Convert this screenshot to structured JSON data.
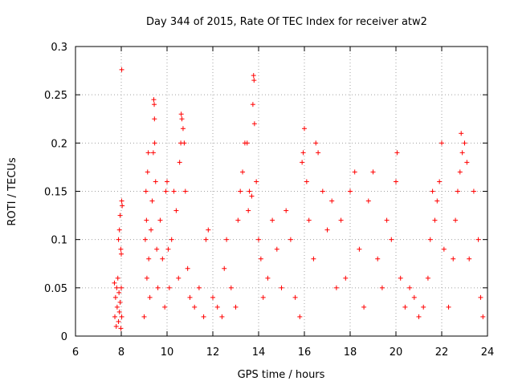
{
  "chart_data": {
    "type": "scatter",
    "title": "Day 344 of 2015, Rate Of TEC Index for receiver atw2",
    "xlabel": "GPS time / hours",
    "ylabel": "ROTI / TECUs",
    "xlim": [
      6,
      24
    ],
    "ylim": [
      0,
      0.3
    ],
    "x_ticks": [
      6,
      8,
      10,
      12,
      14,
      16,
      18,
      20,
      22,
      24
    ],
    "x_tick_labels": [
      "6",
      "8",
      "10",
      "12",
      "14",
      "16",
      "18",
      "20",
      "22",
      "24"
    ],
    "y_ticks": [
      0,
      0.05,
      0.1,
      0.15,
      0.2,
      0.25,
      0.3
    ],
    "y_tick_labels": [
      "0",
      "0.05",
      "0.1",
      "0.15",
      "0.2",
      "0.25",
      "0.3"
    ],
    "grid": true,
    "marker": "plus",
    "color": "#ff0000",
    "series": [
      {
        "name": "ROTI",
        "points": [
          [
            7.7,
            0.055
          ],
          [
            7.72,
            0.02
          ],
          [
            7.75,
            0.04
          ],
          [
            7.78,
            0.01
          ],
          [
            7.8,
            0.05
          ],
          [
            7.82,
            0.03
          ],
          [
            7.85,
            0.06
          ],
          [
            7.88,
            0.015
          ],
          [
            7.9,
            0.045
          ],
          [
            7.92,
            0.025
          ],
          [
            7.95,
            0.035
          ],
          [
            7.98,
            0.008
          ],
          [
            8.0,
            0.05
          ],
          [
            8.02,
            0.02
          ],
          [
            7.88,
            0.1
          ],
          [
            7.92,
            0.11
          ],
          [
            7.95,
            0.125
          ],
          [
            7.98,
            0.09
          ],
          [
            8.0,
            0.085
          ],
          [
            8.02,
            0.14
          ],
          [
            8.04,
            0.135
          ],
          [
            8.02,
            0.276
          ],
          [
            9.0,
            0.02
          ],
          [
            9.05,
            0.1
          ],
          [
            9.08,
            0.15
          ],
          [
            9.1,
            0.12
          ],
          [
            9.12,
            0.06
          ],
          [
            9.15,
            0.17
          ],
          [
            9.18,
            0.19
          ],
          [
            9.2,
            0.08
          ],
          [
            9.25,
            0.04
          ],
          [
            9.3,
            0.11
          ],
          [
            9.35,
            0.14
          ],
          [
            9.4,
            0.19
          ],
          [
            9.42,
            0.245
          ],
          [
            9.44,
            0.24
          ],
          [
            9.45,
            0.225
          ],
          [
            9.46,
            0.2
          ],
          [
            9.5,
            0.16
          ],
          [
            9.55,
            0.09
          ],
          [
            9.6,
            0.05
          ],
          [
            9.7,
            0.12
          ],
          [
            9.8,
            0.08
          ],
          [
            9.9,
            0.03
          ],
          [
            9.95,
            0.15
          ],
          [
            10.0,
            0.16
          ],
          [
            10.05,
            0.09
          ],
          [
            10.1,
            0.05
          ],
          [
            10.2,
            0.1
          ],
          [
            10.3,
            0.15
          ],
          [
            10.4,
            0.13
          ],
          [
            10.5,
            0.06
          ],
          [
            10.55,
            0.18
          ],
          [
            10.6,
            0.2
          ],
          [
            10.62,
            0.23
          ],
          [
            10.65,
            0.225
          ],
          [
            10.7,
            0.215
          ],
          [
            10.75,
            0.2
          ],
          [
            10.8,
            0.15
          ],
          [
            10.9,
            0.07
          ],
          [
            11.0,
            0.04
          ],
          [
            11.2,
            0.03
          ],
          [
            11.4,
            0.05
          ],
          [
            11.6,
            0.02
          ],
          [
            11.7,
            0.1
          ],
          [
            11.8,
            0.11
          ],
          [
            12.0,
            0.04
          ],
          [
            12.2,
            0.03
          ],
          [
            12.4,
            0.02
          ],
          [
            12.5,
            0.07
          ],
          [
            12.6,
            0.1
          ],
          [
            12.8,
            0.05
          ],
          [
            13.0,
            0.03
          ],
          [
            13.1,
            0.12
          ],
          [
            13.2,
            0.15
          ],
          [
            13.3,
            0.17
          ],
          [
            13.4,
            0.2
          ],
          [
            13.5,
            0.2
          ],
          [
            13.55,
            0.13
          ],
          [
            13.6,
            0.15
          ],
          [
            13.7,
            0.145
          ],
          [
            13.75,
            0.24
          ],
          [
            13.78,
            0.27
          ],
          [
            13.8,
            0.265
          ],
          [
            13.82,
            0.22
          ],
          [
            13.9,
            0.16
          ],
          [
            14.0,
            0.1
          ],
          [
            14.1,
            0.08
          ],
          [
            14.2,
            0.04
          ],
          [
            14.4,
            0.06
          ],
          [
            14.6,
            0.12
          ],
          [
            14.8,
            0.09
          ],
          [
            15.0,
            0.05
          ],
          [
            15.2,
            0.13
          ],
          [
            15.4,
            0.1
          ],
          [
            15.6,
            0.04
          ],
          [
            15.8,
            0.02
          ],
          [
            15.9,
            0.18
          ],
          [
            15.95,
            0.19
          ],
          [
            16.0,
            0.215
          ],
          [
            16.1,
            0.16
          ],
          [
            16.2,
            0.12
          ],
          [
            16.4,
            0.08
          ],
          [
            16.5,
            0.2
          ],
          [
            16.6,
            0.19
          ],
          [
            16.8,
            0.15
          ],
          [
            17.0,
            0.11
          ],
          [
            17.2,
            0.14
          ],
          [
            17.4,
            0.05
          ],
          [
            17.6,
            0.12
          ],
          [
            17.8,
            0.06
          ],
          [
            18.0,
            0.15
          ],
          [
            18.2,
            0.17
          ],
          [
            18.4,
            0.09
          ],
          [
            18.6,
            0.03
          ],
          [
            18.8,
            0.14
          ],
          [
            19.0,
            0.17
          ],
          [
            19.2,
            0.08
          ],
          [
            19.4,
            0.05
          ],
          [
            19.6,
            0.12
          ],
          [
            19.8,
            0.1
          ],
          [
            20.0,
            0.16
          ],
          [
            20.05,
            0.19
          ],
          [
            20.2,
            0.06
          ],
          [
            20.4,
            0.03
          ],
          [
            20.6,
            0.05
          ],
          [
            20.8,
            0.04
          ],
          [
            21.0,
            0.02
          ],
          [
            21.2,
            0.03
          ],
          [
            21.4,
            0.06
          ],
          [
            21.5,
            0.1
          ],
          [
            21.6,
            0.15
          ],
          [
            21.7,
            0.12
          ],
          [
            21.8,
            0.14
          ],
          [
            21.9,
            0.16
          ],
          [
            22.0,
            0.2
          ],
          [
            22.1,
            0.09
          ],
          [
            22.3,
            0.03
          ],
          [
            22.5,
            0.08
          ],
          [
            22.6,
            0.12
          ],
          [
            22.7,
            0.15
          ],
          [
            22.8,
            0.17
          ],
          [
            22.85,
            0.21
          ],
          [
            22.9,
            0.19
          ],
          [
            23.0,
            0.2
          ],
          [
            23.1,
            0.18
          ],
          [
            23.2,
            0.08
          ],
          [
            23.4,
            0.15
          ],
          [
            23.6,
            0.1
          ],
          [
            23.7,
            0.04
          ],
          [
            23.8,
            0.02
          ]
        ]
      }
    ]
  }
}
